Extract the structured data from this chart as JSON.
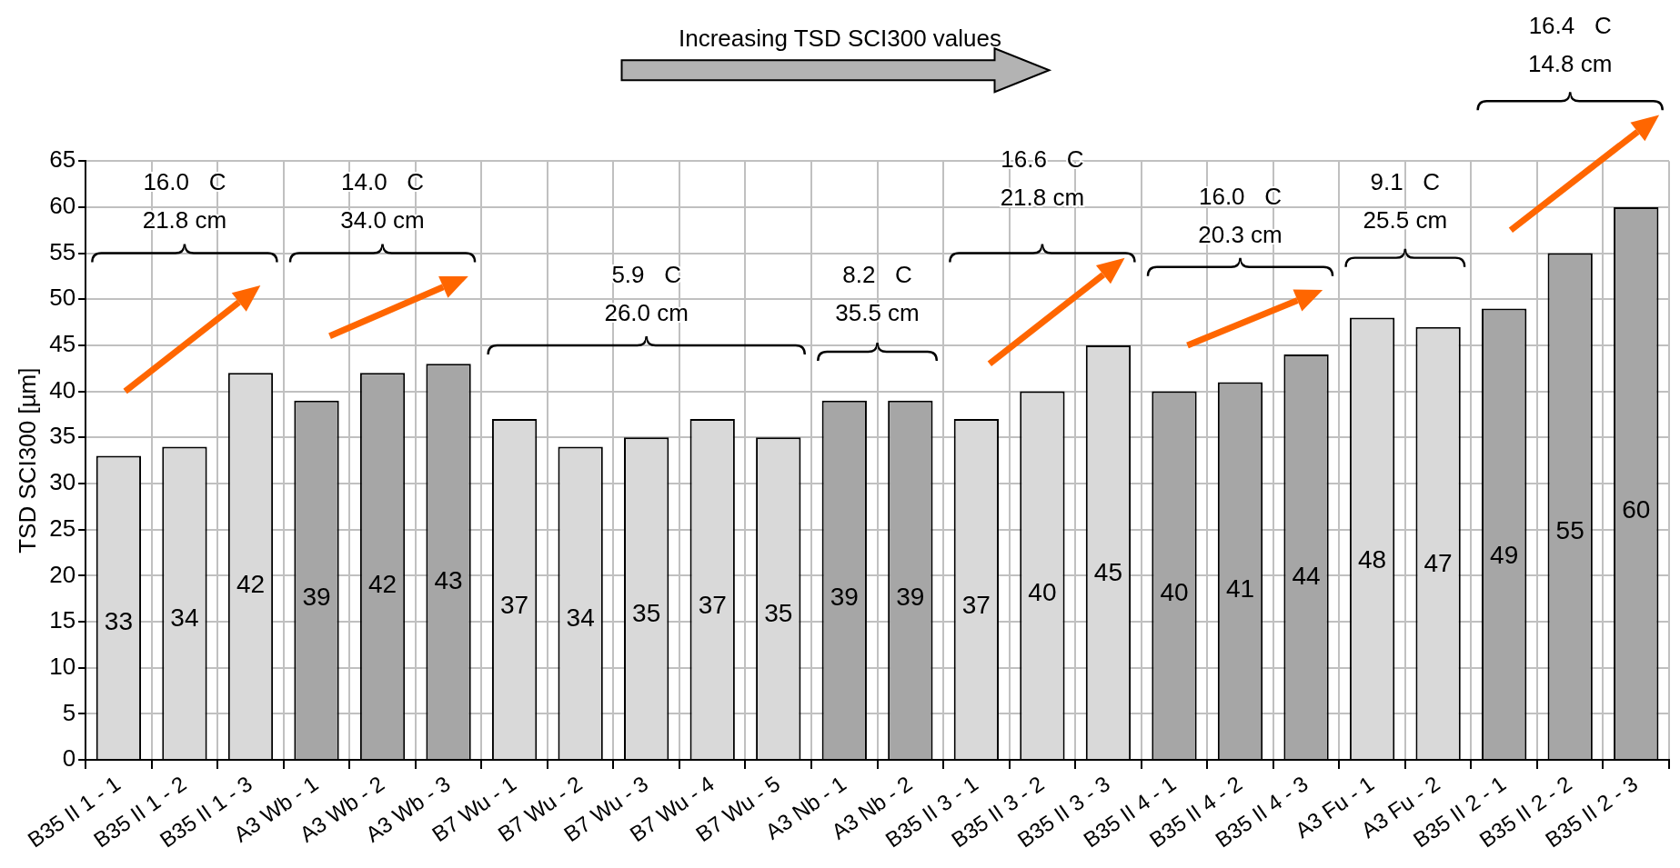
{
  "chart_data": {
    "type": "bar",
    "title": "Increasing TSD SCI300 values",
    "ylabel": "TSD SCI300 [µm]",
    "categories": [
      "B35 II 1 - 1",
      "B35 II 1 - 2",
      "B35 II 1 - 3",
      "A3 Wb - 1",
      "A3 Wb - 2",
      "A3 Wb - 3",
      "B7 Wu - 1",
      "B7 Wu - 2",
      "B7 Wu - 3",
      "B7 Wu - 4",
      "B7 Wu - 5",
      "A3 Nb - 1",
      "A3 Nb - 2",
      "B35 II 3 - 1",
      "B35 II 3 - 2",
      "B35 II 3 - 3",
      "B35 II 4 - 1",
      "B35 II 4 - 2",
      "B35 II 4 - 3",
      "A3 Fu - 1",
      "A3 Fu - 2",
      "B35 II 2 - 1",
      "B35 II 2 - 2",
      "B35 II 2 - 3"
    ],
    "values": [
      33,
      34,
      42,
      39,
      42,
      43,
      37,
      34,
      35,
      37,
      35,
      39,
      39,
      37,
      40,
      45,
      40,
      41,
      44,
      48,
      47,
      49,
      55,
      60
    ],
    "colors": [
      "#d9d9d9",
      "#d9d9d9",
      "#d9d9d9",
      "#a6a6a6",
      "#a6a6a6",
      "#a6a6a6",
      "#d9d9d9",
      "#d9d9d9",
      "#d9d9d9",
      "#d9d9d9",
      "#d9d9d9",
      "#a6a6a6",
      "#a6a6a6",
      "#d9d9d9",
      "#d9d9d9",
      "#d9d9d9",
      "#a6a6a6",
      "#a6a6a6",
      "#a6a6a6",
      "#d9d9d9",
      "#d9d9d9",
      "#a6a6a6",
      "#a6a6a6",
      "#a6a6a6"
    ],
    "ylim": [
      0,
      65
    ],
    "yticks": [
      0,
      5,
      10,
      15,
      20,
      25,
      30,
      35,
      40,
      45,
      50,
      55,
      60,
      65
    ],
    "grid": true,
    "data_labels": true,
    "annotations": [
      "16.0   C\n21.8 cm",
      "14.0   C\n34.0 cm",
      "5.9   C\n26.0 cm",
      "8.2   C\n35.5 cm",
      "16.6   C\n21.8 cm",
      "16.0   C\n20.3 cm",
      "9.1   C\n25.5 cm",
      "16.4   C\n14.8 cm"
    ]
  }
}
